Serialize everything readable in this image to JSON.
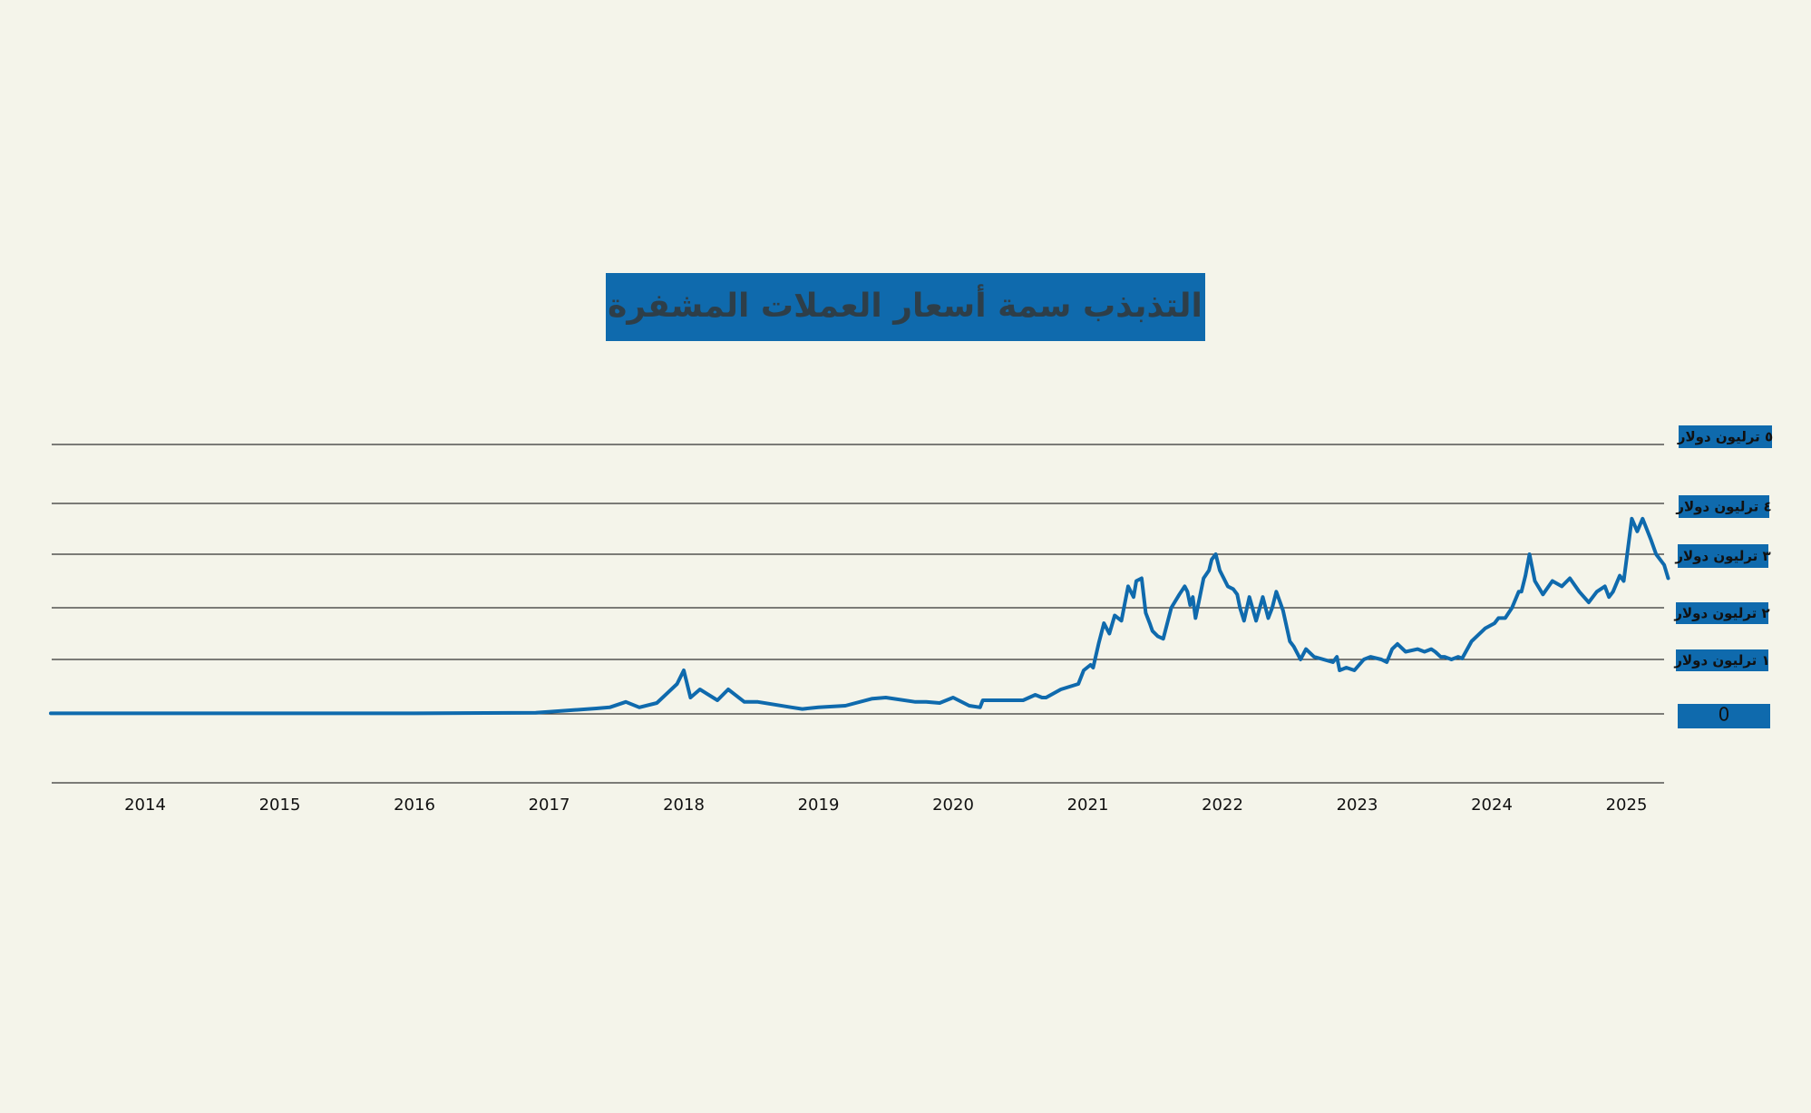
{
  "colors": {
    "background": "#f4f4ea",
    "accent": "#0f6aad",
    "gridline": "#333333",
    "text": "#111111",
    "title_text": "#2e3e48"
  },
  "chart_data": {
    "type": "line",
    "title": "التذبذب سمة أسعار العملات المشفرة",
    "xlabel": "",
    "ylabel": "",
    "x_ticks": [
      "2014",
      "2015",
      "2016",
      "2017",
      "2018",
      "2019",
      "2020",
      "2021",
      "2022",
      "2023",
      "2024",
      "2025"
    ],
    "y_ticks": [
      {
        "value": 0,
        "label": "0"
      },
      {
        "value": 1,
        "label": "١ ترليون دولار"
      },
      {
        "value": 2,
        "label": "٢ ترليون دولار"
      },
      {
        "value": 3,
        "label": "٣ ترليون دولار"
      },
      {
        "value": 4,
        "label": "٤ ترليون دولار"
      },
      {
        "value": 5,
        "label": "٥ ترليون دولار"
      }
    ],
    "grid": true,
    "series": [
      {
        "x": [
          2013.3,
          2014.0,
          2015.0,
          2016.0,
          2016.9,
          2017.35,
          2017.45,
          2017.57,
          2017.67,
          2017.8,
          2017.95,
          2018.0,
          2018.05,
          2018.12,
          2018.25,
          2018.33,
          2018.45,
          2018.55,
          2018.65,
          2018.8,
          2018.88,
          2019.0,
          2019.2,
          2019.4,
          2019.5,
          2019.72,
          2019.8,
          2019.9,
          2020.0,
          2020.12,
          2020.2,
          2020.22,
          2020.32,
          2020.52,
          2020.61,
          2020.66,
          2020.69,
          2020.8,
          2020.93,
          2020.97,
          2021.02,
          2021.04,
          2021.08,
          2021.12,
          2021.16,
          2021.2,
          2021.25,
          2021.3,
          2021.34,
          2021.36,
          2021.4,
          2021.43,
          2021.46,
          2021.48,
          2021.52,
          2021.56,
          2021.62,
          2021.68,
          2021.72,
          2021.74,
          2021.76,
          2021.78,
          2021.8,
          2021.86,
          2021.9,
          2021.92,
          2021.95,
          2021.98,
          2022.0,
          2022.04,
          2022.08,
          2022.11,
          2022.13,
          2022.16,
          2022.2,
          2022.25,
          2022.3,
          2022.34,
          2022.37,
          2022.4,
          2022.45,
          2022.5,
          2022.53,
          2022.58,
          2022.62,
          2022.68,
          2022.75,
          2022.82,
          2022.85,
          2022.87,
          2022.92,
          2022.98,
          2023.05,
          2023.1,
          2023.18,
          2023.22,
          2023.26,
          2023.3,
          2023.36,
          2023.45,
          2023.5,
          2023.55,
          2023.58,
          2023.62,
          2023.65,
          2023.7,
          2023.75,
          2023.78,
          2023.85,
          2023.95,
          2024.02,
          2024.05,
          2024.1,
          2024.15,
          2024.2,
          2024.22,
          2024.25,
          2024.28,
          2024.32,
          2024.38,
          2024.45,
          2024.52,
          2024.58,
          2024.65,
          2024.72,
          2024.78,
          2024.84,
          2024.87,
          2024.9,
          2024.95,
          2024.98,
          2025.04,
          2025.08,
          2025.12,
          2025.18,
          2025.22,
          2025.28,
          2025.31
        ],
        "values": [
          0.01,
          0.01,
          0.01,
          0.01,
          0.02,
          0.1,
          0.12,
          0.22,
          0.12,
          0.2,
          0.55,
          0.8,
          0.3,
          0.45,
          0.25,
          0.45,
          0.22,
          0.22,
          0.18,
          0.12,
          0.09,
          0.12,
          0.15,
          0.28,
          0.3,
          0.22,
          0.22,
          0.2,
          0.3,
          0.15,
          0.12,
          0.25,
          0.25,
          0.25,
          0.35,
          0.3,
          0.3,
          0.45,
          0.55,
          0.8,
          0.9,
          0.85,
          1.3,
          1.7,
          1.5,
          1.85,
          1.75,
          2.4,
          2.2,
          2.5,
          2.55,
          1.9,
          1.7,
          1.55,
          1.45,
          1.4,
          2.0,
          2.25,
          2.4,
          2.3,
          2.05,
          2.2,
          1.8,
          2.55,
          2.7,
          2.9,
          3.0,
          2.7,
          2.6,
          2.4,
          2.35,
          2.25,
          2.0,
          1.75,
          2.2,
          1.75,
          2.2,
          1.8,
          2.0,
          2.3,
          1.95,
          1.35,
          1.25,
          1.0,
          1.2,
          1.05,
          1.0,
          0.95,
          1.05,
          0.8,
          0.85,
          0.8,
          1.0,
          1.05,
          1.0,
          0.95,
          1.2,
          1.3,
          1.15,
          1.2,
          1.15,
          1.2,
          1.15,
          1.05,
          1.05,
          1.0,
          1.05,
          1.02,
          1.35,
          1.6,
          1.7,
          1.8,
          1.8,
          2.0,
          2.3,
          2.3,
          2.6,
          3.0,
          2.5,
          2.25,
          2.5,
          2.4,
          2.55,
          2.3,
          2.1,
          2.3,
          2.4,
          2.2,
          2.3,
          2.6,
          2.5,
          3.7,
          3.45,
          3.7,
          3.3,
          3.0,
          2.8,
          2.55
        ]
      }
    ]
  }
}
